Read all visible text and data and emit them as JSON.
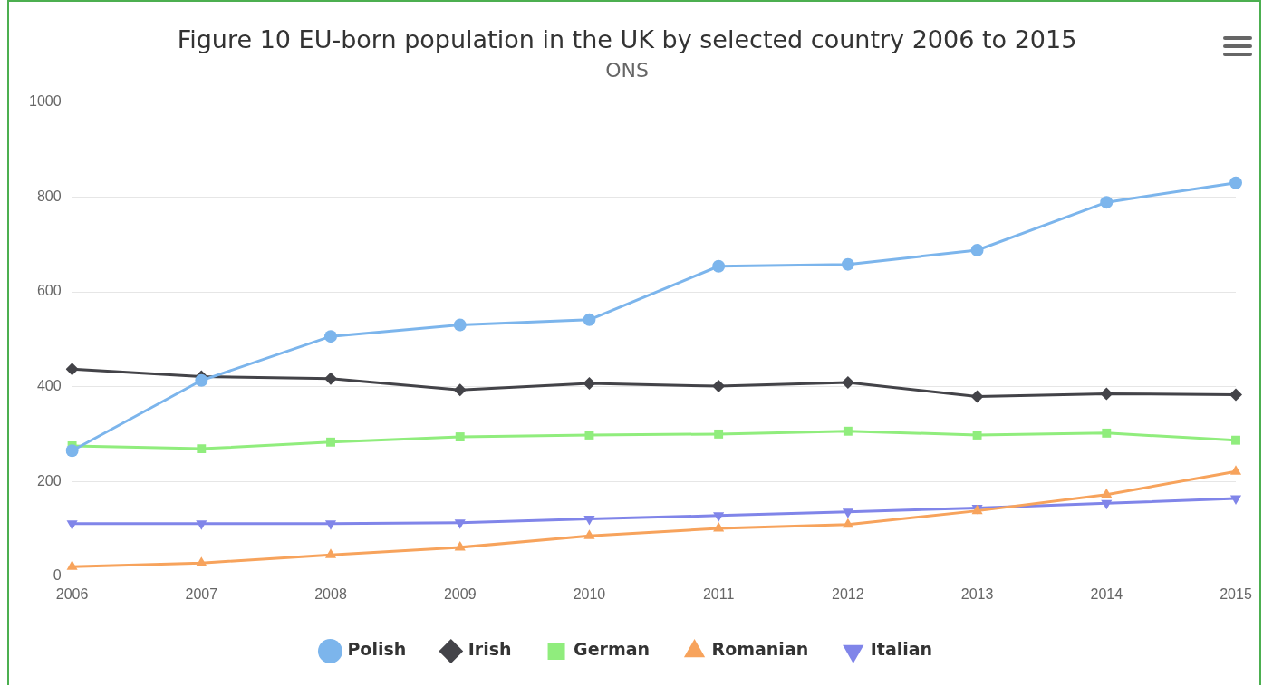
{
  "chart_data": {
    "type": "line",
    "title": "Figure 10 EU-born population in the UK by selected country 2006 to 2015",
    "subtitle": "ONS",
    "categories": [
      "2006",
      "2007",
      "2008",
      "2009",
      "2010",
      "2011",
      "2012",
      "2013",
      "2014",
      "2015"
    ],
    "series": [
      {
        "name": "Polish",
        "color": "#7cb5ec",
        "marker": "circle",
        "values": [
          265,
          413,
          506,
          530,
          541,
          654,
          658,
          688,
          789,
          830
        ]
      },
      {
        "name": "Irish",
        "color": "#434348",
        "marker": "diamond",
        "values": [
          437,
          421,
          417,
          393,
          407,
          401,
          409,
          379,
          385,
          383
        ]
      },
      {
        "name": "German",
        "color": "#90ed7d",
        "marker": "square",
        "values": [
          275,
          269,
          283,
          294,
          298,
          300,
          306,
          298,
          302,
          287
        ]
      },
      {
        "name": "Romanian",
        "color": "#f7a35c",
        "marker": "triangle",
        "values": [
          20,
          28,
          45,
          61,
          85,
          101,
          109,
          138,
          172,
          221
        ]
      },
      {
        "name": "Italian",
        "color": "#8085e9",
        "marker": "triangle-down",
        "values": [
          111,
          111,
          111,
          113,
          121,
          128,
          136,
          144,
          154,
          164
        ]
      }
    ],
    "ylim": [
      0,
      1000
    ],
    "yticks": [
      0,
      200,
      400,
      600,
      800,
      1000
    ],
    "grid": "y",
    "legend": "bottom",
    "line_style": "solid"
  }
}
